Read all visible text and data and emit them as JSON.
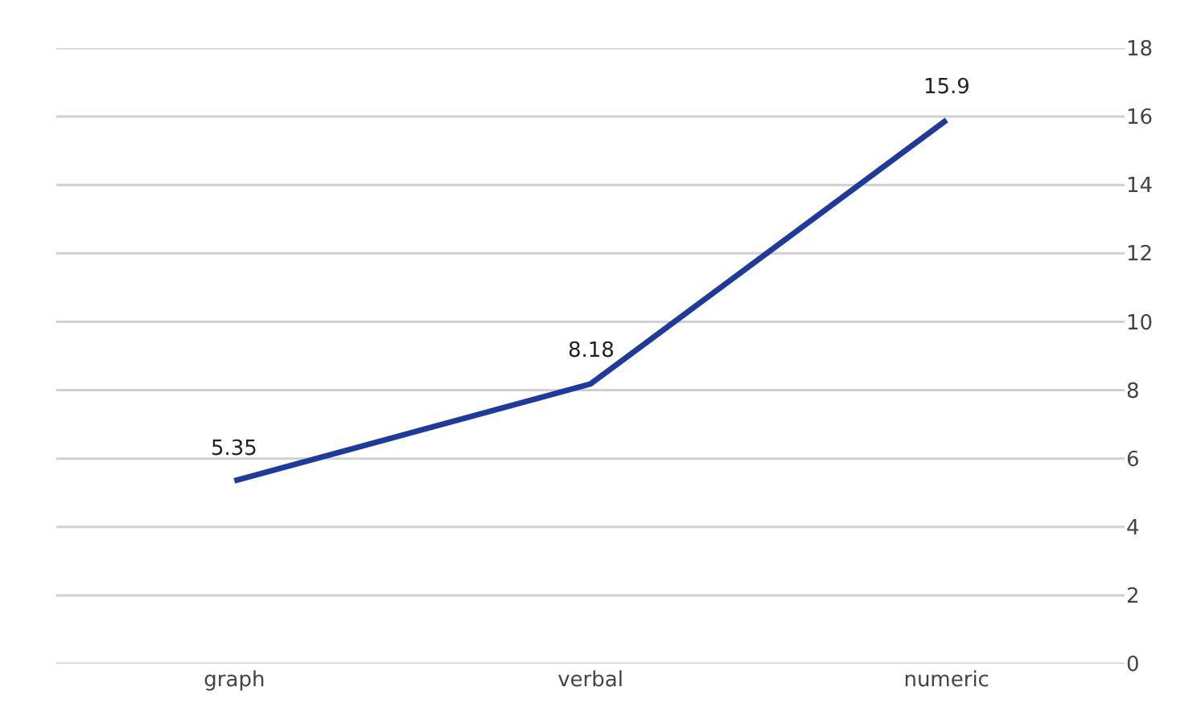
{
  "chart_data": {
    "type": "line",
    "categories": [
      "graph",
      "verbal",
      "numeric"
    ],
    "series": [
      {
        "color": "#1f3a9e",
        "values": [
          5.35,
          8.18,
          15.9
        ]
      }
    ],
    "ylim": [
      0,
      18
    ],
    "yticks": [
      0,
      2,
      4,
      6,
      8,
      10,
      12,
      14,
      16,
      18
    ],
    "grid": "y",
    "data_labels": true,
    "marker": "none",
    "line_style": "solid"
  }
}
